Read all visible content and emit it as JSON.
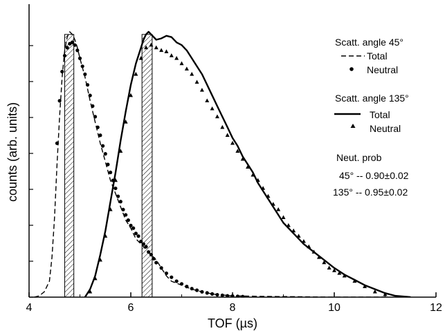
{
  "chart_data": {
    "type": "line",
    "xlabel": "TOF (µs)",
    "ylabel": "counts (arb. units)",
    "xlim": [
      4,
      12
    ],
    "ylim": [
      0,
      1.0
    ],
    "x_ticks": [
      "4",
      "6",
      "8",
      "10",
      "12"
    ],
    "y_tick_labels_shown": false,
    "grid": false,
    "legend": {
      "placement": "top-right",
      "groups": [
        {
          "title": "Scatt. angle 45°",
          "entries": [
            {
              "label": "Total",
              "style": "dashed"
            },
            {
              "label": "Neutral",
              "marker": "circle"
            }
          ]
        },
        {
          "title": "Scatt. angle 135°",
          "entries": [
            {
              "label": "Total",
              "style": "solid"
            },
            {
              "label": "Neutral",
              "marker": "triangle"
            }
          ]
        }
      ]
    },
    "annotation": {
      "title": "Neut. prob",
      "lines": [
        "45° -- 0.90±0.02",
        "135° -- 0.95±0.02"
      ]
    },
    "hatched_windows": [
      [
        4.7,
        4.88
      ],
      [
        6.22,
        6.42
      ]
    ],
    "series": [
      {
        "name": "Total",
        "group": "Scatt. angle 45°",
        "style": "dashed",
        "x": [
          4.1,
          4.2,
          4.3,
          4.4,
          4.45,
          4.5,
          4.55,
          4.6,
          4.65,
          4.7,
          4.75,
          4.8,
          4.85,
          4.9,
          4.95,
          5.0,
          5.1,
          5.2,
          5.3,
          5.4,
          5.5,
          5.6,
          5.7,
          5.8,
          5.9,
          6.0,
          6.1,
          6.2,
          6.3,
          6.4,
          6.5,
          6.6,
          6.7,
          6.8,
          7.0,
          7.2,
          7.4,
          7.6,
          7.8,
          8.0,
          8.5,
          9.0,
          9.5,
          10.0,
          11.0
        ],
        "y": [
          0.0,
          0.005,
          0.02,
          0.06,
          0.15,
          0.3,
          0.5,
          0.68,
          0.83,
          0.93,
          0.98,
          1.0,
          0.99,
          0.97,
          0.94,
          0.9,
          0.83,
          0.74,
          0.66,
          0.58,
          0.51,
          0.44,
          0.39,
          0.34,
          0.29,
          0.26,
          0.22,
          0.2,
          0.18,
          0.16,
          0.14,
          0.11,
          0.08,
          0.06,
          0.045,
          0.03,
          0.02,
          0.012,
          0.008,
          0.005,
          0.003,
          0.002,
          0.001,
          0.0,
          0.0
        ]
      },
      {
        "name": "Neutral",
        "group": "Scatt. angle 45°",
        "marker": "circle",
        "x": [
          4.55,
          4.6,
          4.65,
          4.7,
          4.75,
          4.8,
          4.85,
          4.9,
          4.95,
          5.0,
          5.05,
          5.1,
          5.15,
          5.2,
          5.25,
          5.3,
          5.35,
          5.4,
          5.45,
          5.5,
          5.55,
          5.6,
          5.65,
          5.7,
          5.75,
          5.8,
          5.85,
          5.9,
          5.95,
          6.0,
          6.05,
          6.1,
          6.15,
          6.2,
          6.25,
          6.3,
          6.35,
          6.4,
          6.45,
          6.5,
          6.6,
          6.7,
          6.8,
          6.9,
          7.0,
          7.1,
          7.2,
          7.3,
          7.4,
          7.5,
          7.6,
          7.7,
          7.8,
          7.9,
          8.0,
          8.1,
          8.2
        ],
        "y": [
          0.58,
          0.74,
          0.85,
          0.91,
          0.94,
          0.955,
          0.96,
          0.95,
          0.93,
          0.9,
          0.87,
          0.84,
          0.8,
          0.76,
          0.72,
          0.68,
          0.64,
          0.61,
          0.57,
          0.54,
          0.5,
          0.47,
          0.44,
          0.41,
          0.38,
          0.36,
          0.33,
          0.31,
          0.29,
          0.27,
          0.26,
          0.24,
          0.23,
          0.21,
          0.2,
          0.19,
          0.17,
          0.16,
          0.145,
          0.13,
          0.11,
          0.09,
          0.075,
          0.06,
          0.05,
          0.04,
          0.032,
          0.026,
          0.02,
          0.016,
          0.012,
          0.009,
          0.007,
          0.005,
          0.004,
          0.003,
          0.002
        ]
      },
      {
        "name": "Total",
        "group": "Scatt. angle 135°",
        "style": "solid",
        "x": [
          5.1,
          5.2,
          5.3,
          5.4,
          5.5,
          5.6,
          5.7,
          5.8,
          5.9,
          6.0,
          6.1,
          6.2,
          6.25,
          6.3,
          6.35,
          6.4,
          6.5,
          6.6,
          6.7,
          6.8,
          6.9,
          7.0,
          7.1,
          7.2,
          7.3,
          7.4,
          7.5,
          7.6,
          7.7,
          7.8,
          7.9,
          8.0,
          8.1,
          8.2,
          8.3,
          8.4,
          8.5,
          8.6,
          8.8,
          9.0,
          9.2,
          9.4,
          9.6,
          9.8,
          10.0,
          10.2,
          10.4,
          10.6,
          10.8,
          11.0,
          11.2,
          11.5
        ],
        "y": [
          0.0,
          0.03,
          0.08,
          0.16,
          0.25,
          0.36,
          0.47,
          0.59,
          0.7,
          0.8,
          0.88,
          0.94,
          0.97,
          0.99,
          1.0,
          0.99,
          0.97,
          0.975,
          0.985,
          0.98,
          0.96,
          0.95,
          0.93,
          0.9,
          0.87,
          0.84,
          0.8,
          0.76,
          0.72,
          0.68,
          0.64,
          0.6,
          0.57,
          0.53,
          0.5,
          0.47,
          0.43,
          0.4,
          0.34,
          0.28,
          0.24,
          0.2,
          0.17,
          0.14,
          0.11,
          0.085,
          0.065,
          0.045,
          0.03,
          0.015,
          0.005,
          0.0
        ]
      },
      {
        "name": "Neutral",
        "group": "Scatt. angle 135°",
        "marker": "triangle",
        "x": [
          5.2,
          5.3,
          5.4,
          5.5,
          5.6,
          5.7,
          5.8,
          5.9,
          6.0,
          6.1,
          6.2,
          6.3,
          6.4,
          6.5,
          6.6,
          6.7,
          6.8,
          6.9,
          7.0,
          7.1,
          7.2,
          7.3,
          7.4,
          7.5,
          7.6,
          7.7,
          7.8,
          7.9,
          8.0,
          8.1,
          8.2,
          8.3,
          8.4,
          8.5,
          8.6,
          8.7,
          8.8,
          8.9,
          9.0,
          9.1,
          9.2,
          9.3,
          9.4,
          9.5,
          9.6,
          9.7,
          9.8,
          9.9,
          10.0,
          10.1,
          10.2,
          10.4,
          10.6,
          10.8,
          11.0
        ],
        "y": [
          0.02,
          0.07,
          0.14,
          0.23,
          0.33,
          0.44,
          0.55,
          0.66,
          0.76,
          0.84,
          0.9,
          0.94,
          0.95,
          0.94,
          0.93,
          0.925,
          0.91,
          0.9,
          0.88,
          0.86,
          0.84,
          0.81,
          0.78,
          0.74,
          0.71,
          0.68,
          0.64,
          0.61,
          0.58,
          0.55,
          0.52,
          0.49,
          0.46,
          0.44,
          0.41,
          0.38,
          0.35,
          0.33,
          0.3,
          0.27,
          0.25,
          0.23,
          0.21,
          0.19,
          0.17,
          0.15,
          0.13,
          0.11,
          0.1,
          0.09,
          0.08,
          0.06,
          0.04,
          0.02,
          0.01
        ]
      }
    ]
  }
}
